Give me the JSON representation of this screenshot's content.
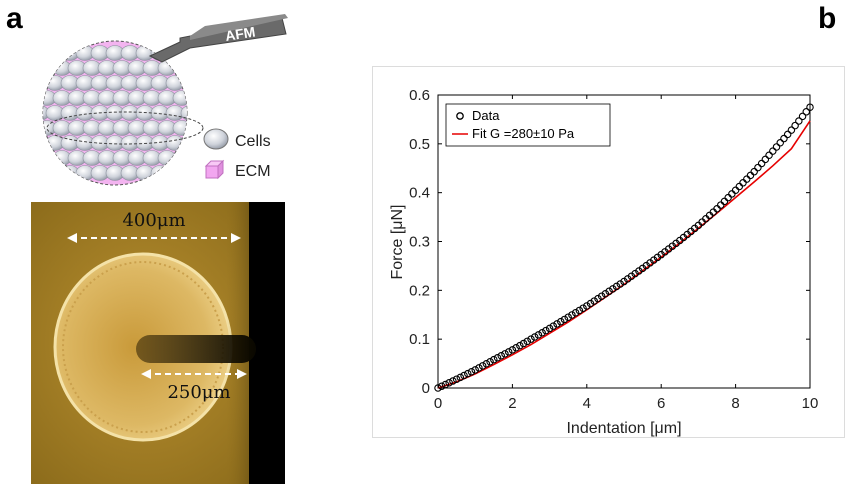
{
  "panel_a": {
    "letter": "a",
    "afm_label": "AFM",
    "legend": [
      {
        "label": "Cells",
        "icon": "sphere-icon",
        "color": "#c8ccd4"
      },
      {
        "label": "ECM",
        "icon": "cube-icon",
        "color": "#f2a6f0"
      }
    ],
    "micrograph": {
      "dim_outer": "400μm",
      "dim_inner": "250μm",
      "colors": {
        "background": "#b08a20",
        "spheroid": "#d9b45a",
        "edge": "#000000"
      }
    }
  },
  "panel_b": {
    "letter": "b"
  },
  "chart_data": {
    "type": "scatter",
    "xlabel": "Indentation [μm]",
    "ylabel": "Force [μN]",
    "xlim": [
      0,
      10
    ],
    "ylim": [
      0,
      0.6
    ],
    "xticks": [
      0,
      2,
      4,
      6,
      8,
      10
    ],
    "yticks": [
      0,
      0.1,
      0.2,
      0.3,
      0.4,
      0.5,
      0.6
    ],
    "xtick_labels": [
      "0",
      "2",
      "4",
      "6",
      "8",
      "10"
    ],
    "ytick_labels": [
      "0",
      "0.1",
      "0.2",
      "0.3",
      "0.4",
      "0.5",
      "0.6"
    ],
    "legend_position": "top-left",
    "series": [
      {
        "name": "Data",
        "kind": "markers",
        "marker": "open-circle",
        "color": "#000000",
        "x": [
          0,
          0.5,
          1,
          1.5,
          2,
          2.5,
          3,
          3.5,
          4,
          4.5,
          5,
          5.5,
          6,
          6.5,
          7,
          7.5,
          8,
          8.5,
          9,
          9.5,
          10
        ],
        "y": [
          0,
          0.018,
          0.037,
          0.058,
          0.078,
          0.1,
          0.122,
          0.145,
          0.168,
          0.193,
          0.218,
          0.245,
          0.273,
          0.302,
          0.333,
          0.367,
          0.405,
          0.443,
          0.485,
          0.528,
          0.575
        ]
      },
      {
        "name": "Fit G =280±10 Pa",
        "kind": "line",
        "color": "#e60000",
        "x": [
          0,
          0.5,
          1,
          1.5,
          2,
          2.5,
          3,
          3.5,
          4,
          4.5,
          5,
          5.5,
          6,
          6.5,
          7,
          7.5,
          8,
          8.5,
          9,
          9.5,
          10
        ],
        "y": [
          0,
          0.0125,
          0.029,
          0.048,
          0.068,
          0.089,
          0.112,
          0.135,
          0.16,
          0.186,
          0.212,
          0.24,
          0.268,
          0.297,
          0.327,
          0.358,
          0.39,
          0.422,
          0.455,
          0.49,
          0.547
        ]
      }
    ]
  }
}
